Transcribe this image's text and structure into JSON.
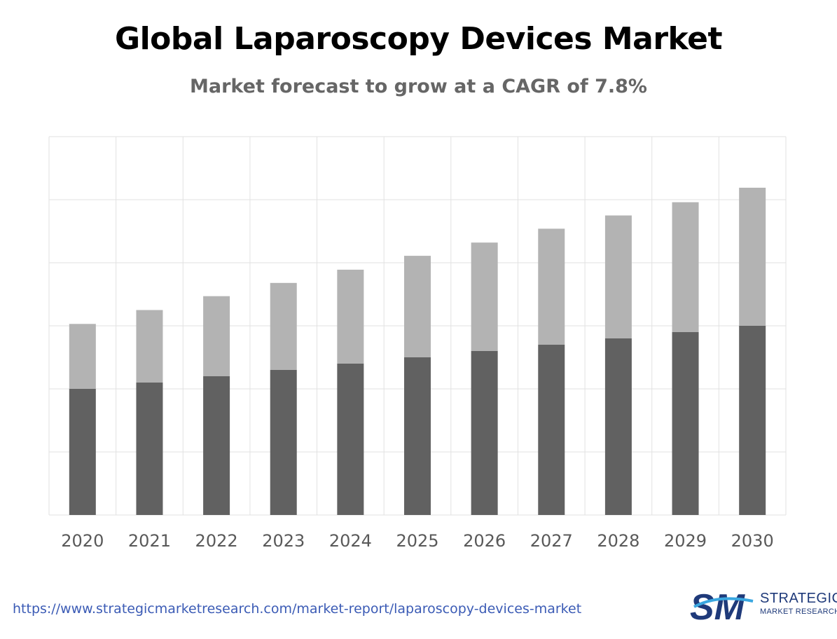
{
  "title": "Global Laparoscopy Devices Market",
  "subtitle": "Market forecast to grow at a CAGR of 7.8%",
  "url": "https://www.strategicmarketresearch.com/market-report/laparoscopy-devices-market",
  "logo": {
    "mark": "SM",
    "line1": "STRATEGIC",
    "line2": "MARKET RESEARCH"
  },
  "colors": {
    "lower_series": "#616161",
    "upper_series": "#b3b3b3",
    "grid": "#e2e2e2",
    "tick_text": "#595959"
  },
  "chart_data": {
    "type": "bar",
    "stacked": true,
    "categories": [
      "2020",
      "2021",
      "2022",
      "2023",
      "2024",
      "2025",
      "2026",
      "2027",
      "2028",
      "2029",
      "2030"
    ],
    "series": [
      {
        "values": [
          2.0,
          2.1,
          2.2,
          2.3,
          2.4,
          2.5,
          2.6,
          2.7,
          2.8,
          2.9,
          3.0
        ]
      },
      {
        "values": [
          1.03,
          1.15,
          1.27,
          1.38,
          1.49,
          1.61,
          1.72,
          1.84,
          1.95,
          2.06,
          2.19
        ]
      }
    ],
    "ylim": [
      0,
      6
    ],
    "grid": true,
    "xlabel": "",
    "ylabel": ""
  }
}
